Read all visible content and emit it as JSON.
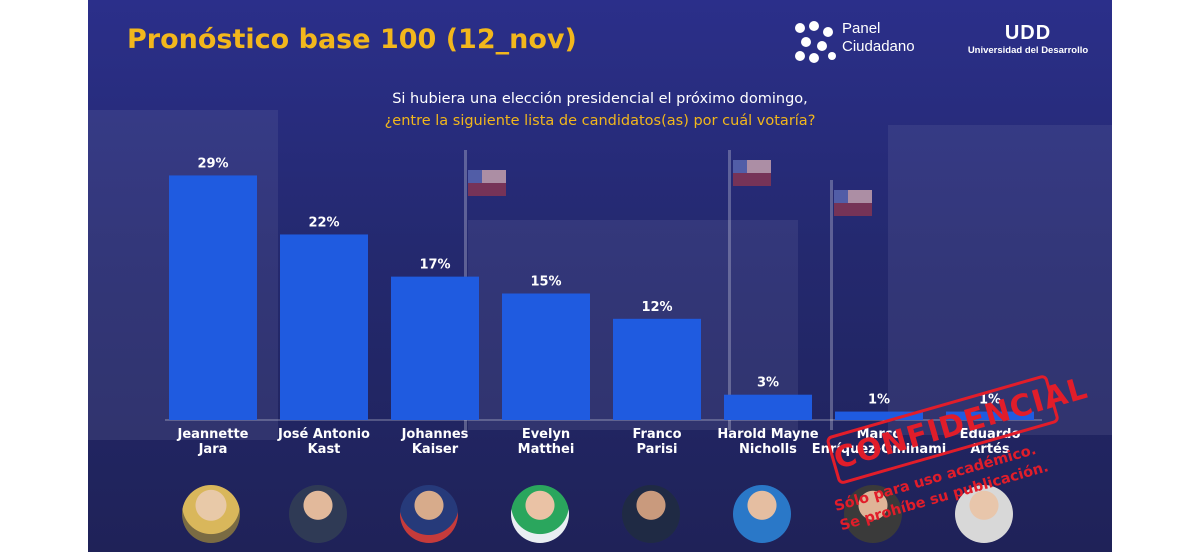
{
  "header": {
    "title": "Pronóstico base 100 (12_nov)",
    "brand_line1": "Panel",
    "brand_line2": "Ciudadano",
    "udd_logo": "UDD",
    "udd_name": "Universidad del Desarrollo"
  },
  "question": {
    "line1": "Si hubiera una elección presidencial el próximo domingo,",
    "line2": "¿entre la siguiente lista de candidatos(as) por cuál votaría?"
  },
  "chart_data": {
    "type": "bar",
    "categories": [
      "Jeannette Jara",
      "José Antonio Kast",
      "Johannes Kaiser",
      "Evelyn Matthei",
      "Franco Parisi",
      "Harold Mayne Nicholls",
      "Marco Enríquez-Ominami",
      "Eduardo Artés"
    ],
    "values": [
      29,
      22,
      17,
      15,
      12,
      3,
      1,
      1
    ],
    "data_labels": [
      "29%",
      "22%",
      "17%",
      "15%",
      "12%",
      "3%",
      "1%",
      "1%"
    ],
    "ylim": [
      0,
      30
    ],
    "grid": false,
    "legend": "none",
    "bar_color": "#1f5be0"
  },
  "stamp": {
    "word": "CONFIDENCIAL",
    "line1": "Sólo para uso académico.",
    "line2": "Se prohíbe su publicación."
  },
  "colors": {
    "title": "#f2b71c",
    "question_highlight": "#f2b71c",
    "stamp": "#e11d2a"
  }
}
